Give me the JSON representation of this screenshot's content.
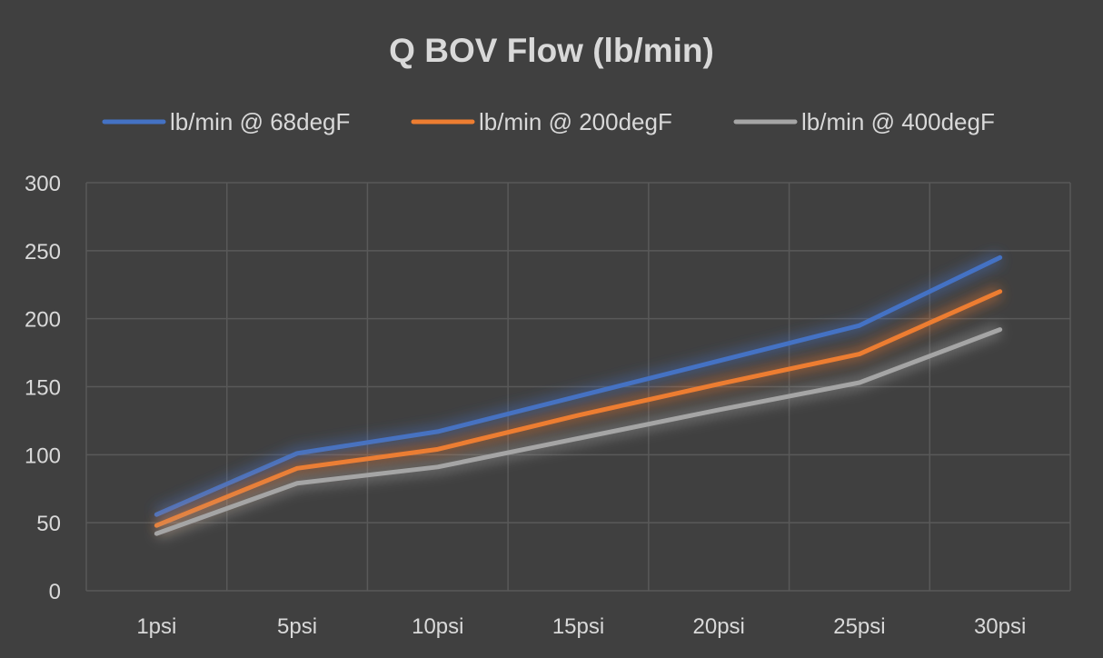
{
  "chart_data": {
    "type": "line",
    "title": "Q BOV Flow (lb/min)",
    "xlabel": "",
    "ylabel": "",
    "categories": [
      "1psi",
      "5psi",
      "10psi",
      "15psi",
      "20psi",
      "25psi",
      "30psi"
    ],
    "ylim": [
      0,
      300
    ],
    "yticks": [
      0,
      50,
      100,
      150,
      200,
      250,
      300
    ],
    "grid": true,
    "legend_position": "top",
    "background_color": "#404040",
    "series": [
      {
        "name": "lb/min @ 68degF",
        "color": "#4472C4",
        "values": [
          56,
          101,
          117,
          143,
          169,
          195,
          245
        ]
      },
      {
        "name": "lb/min @ 200degF",
        "color": "#ED7D31",
        "values": [
          48,
          90,
          104,
          129,
          152,
          174,
          220
        ]
      },
      {
        "name": "lb/min @ 400degF",
        "color": "#A5A5A5",
        "values": [
          42,
          79,
          91,
          112,
          133,
          153,
          192
        ]
      }
    ]
  }
}
